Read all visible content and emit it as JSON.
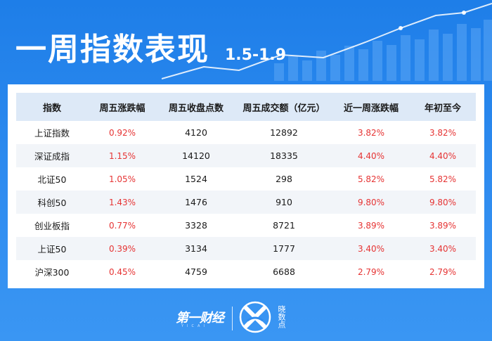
{
  "header": {
    "title": "一周指数表现",
    "date_range": "1.5-1.9"
  },
  "table": {
    "columns": [
      "指数",
      "周五涨跌幅",
      "周五收盘点数",
      "周五成交额（亿元）",
      "近一周涨跌幅",
      "年初至今"
    ],
    "rows": [
      {
        "name": "上证指数",
        "fri_change": "0.92%",
        "fri_close": "4120",
        "fri_turnover": "12892",
        "week_change": "3.82%",
        "ytd": "3.82%"
      },
      {
        "name": "深证成指",
        "fri_change": "1.15%",
        "fri_close": "14120",
        "fri_turnover": "18335",
        "week_change": "4.40%",
        "ytd": "4.40%"
      },
      {
        "name": "北证50",
        "fri_change": "1.05%",
        "fri_close": "1524",
        "fri_turnover": "298",
        "week_change": "5.82%",
        "ytd": "5.82%"
      },
      {
        "name": "科创50",
        "fri_change": "1.43%",
        "fri_close": "1476",
        "fri_turnover": "910",
        "week_change": "9.80%",
        "ytd": "9.80%"
      },
      {
        "name": "创业板指",
        "fri_change": "0.77%",
        "fri_close": "3328",
        "fri_turnover": "8721",
        "week_change": "3.89%",
        "ytd": "3.89%"
      },
      {
        "name": "上证50",
        "fri_change": "0.39%",
        "fri_close": "3134",
        "fri_turnover": "1777",
        "week_change": "3.40%",
        "ytd": "3.40%"
      },
      {
        "name": "沪深300",
        "fri_change": "0.45%",
        "fri_close": "4759",
        "fri_turnover": "6688",
        "week_change": "2.79%",
        "ytd": "2.79%"
      }
    ]
  },
  "footer": {
    "brand_primary": "第一财经",
    "brand_primary_sub": "YICAI",
    "brand_secondary": "晓数点"
  },
  "colors": {
    "background": "#2f8cf0",
    "header_row": "#dde9f7",
    "positive": "#e63434"
  }
}
